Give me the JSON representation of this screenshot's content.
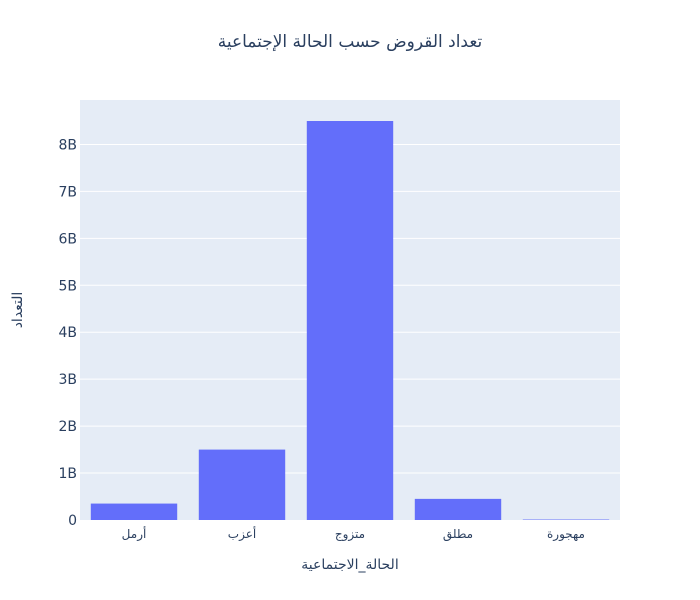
{
  "chart_data": {
    "type": "bar",
    "title": "تعداد القروض حسب الحالة الإجتماعية",
    "xlabel": "الحالة_الاجتماعية",
    "ylabel": "التعداد",
    "categories": [
      "أرمل",
      "أعزب",
      "متزوج",
      "مطلق",
      "مهجورة"
    ],
    "values": [
      350000000,
      1500000000,
      8500000000,
      450000000,
      10000000
    ],
    "ylim": [
      0,
      8947368421
    ],
    "yticks": [
      0,
      1000000000,
      2000000000,
      3000000000,
      4000000000,
      5000000000,
      6000000000,
      7000000000,
      8000000000
    ],
    "ytick_labels": [
      "0",
      "1B",
      "2B",
      "3B",
      "4B",
      "5B",
      "6B",
      "7B",
      "8B"
    ],
    "grid": true,
    "colors": {
      "bar": "#636efa",
      "plot_bg": "#e5ecf6",
      "grid": "#ffffff",
      "text": "#2a3f5f"
    }
  }
}
